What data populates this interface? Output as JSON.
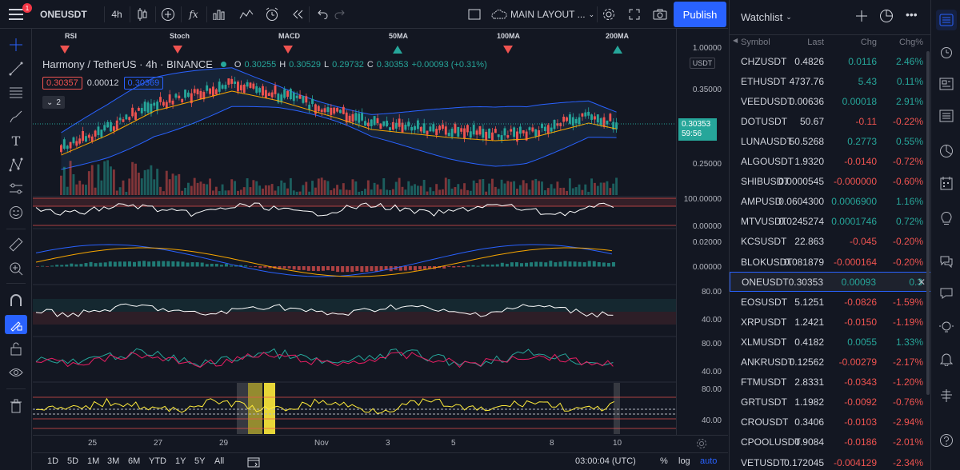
{
  "topbar": {
    "symbol": "ONEUSDT",
    "interval": "4h",
    "layout_name": "MAIN LAYOUT ...",
    "publish_label": "Publish",
    "notification_count": "1"
  },
  "legend": {
    "title": "Harmony / TetherUS · 4h · BINANCE",
    "o_label": "O",
    "o_value": "0.30255",
    "h_label": "H",
    "h_value": "0.30529",
    "l_label": "L",
    "l_value": "0.29732",
    "c_label": "C",
    "c_value": "0.30353",
    "change": "+0.00093 (+0.31%)",
    "bid": "0.30357",
    "spread": "0.00012",
    "ask": "0.30369",
    "collapse_count": "2"
  },
  "indicator_markers": [
    "RSI",
    "Stoch",
    "MACD",
    "50MA",
    "100MA",
    "200MA"
  ],
  "price_scale": {
    "top": "1.00000",
    "currency": "USDT",
    "p1": "0.35000",
    "current": "0.30353",
    "countdown": "59:56",
    "p2": "0.25000",
    "pane1_top": "100.00000",
    "pane1_bot": "0.00000",
    "pane2_top": "0.02000",
    "pane2_mid": "0.00000",
    "pane3_top": "80.00",
    "pane3_bot": "40.00",
    "pane4_top": "80.00",
    "pane4_bot": "40.00",
    "pane5_top": "80.00",
    "pane5_bot": "40.00"
  },
  "time_axis": [
    "25",
    "27",
    "29",
    "Nov",
    "3",
    "5",
    "8",
    "10"
  ],
  "bottom_bar": {
    "ranges": [
      "1D",
      "5D",
      "1M",
      "3M",
      "6M",
      "YTD",
      "1Y",
      "5Y",
      "All"
    ],
    "clock": "03:00:04 (UTC)",
    "percent": "%",
    "log": "log",
    "auto": "auto"
  },
  "watchlist": {
    "title": "Watchlist",
    "columns": {
      "symbol": "Symbol",
      "last": "Last",
      "chg": "Chg",
      "chgp": "Chg%"
    },
    "rows": [
      {
        "symbol": "CHZUSDT",
        "last": "0.4826",
        "chg": "0.0116",
        "chgp": "2.46%",
        "dir": "up"
      },
      {
        "symbol": "ETHUSDT",
        "last": "4737.76",
        "chg": "5.43",
        "chgp": "0.11%",
        "dir": "up"
      },
      {
        "symbol": "VEEDUSDT",
        "last": "0.00636",
        "chg": "0.00018",
        "chgp": "2.91%",
        "dir": "up"
      },
      {
        "symbol": "DOTUSDT",
        "last": "50.67",
        "chg": "-0.11",
        "chgp": "-0.22%",
        "dir": "dn"
      },
      {
        "symbol": "LUNAUSDT",
        "last": "50.5268",
        "chg": "0.2773",
        "chgp": "0.55%",
        "dir": "up"
      },
      {
        "symbol": "ALGOUSDT",
        "last": "1.9320",
        "chg": "-0.0140",
        "chgp": "-0.72%",
        "dir": "dn"
      },
      {
        "symbol": "SHIBUSDT",
        "last": "0.0000545",
        "chg": "-0.000000",
        "chgp": "-0.60%",
        "dir": "dn"
      },
      {
        "symbol": "AMPUSD",
        "last": "0.0604300",
        "chg": "0.0006900",
        "chgp": "1.16%",
        "dir": "up"
      },
      {
        "symbol": "MTVUSDT",
        "last": "0.0245274",
        "chg": "0.0001746",
        "chgp": "0.72%",
        "dir": "up"
      },
      {
        "symbol": "KCSUSDT",
        "last": "22.863",
        "chg": "-0.045",
        "chgp": "-0.20%",
        "dir": "dn"
      },
      {
        "symbol": "BLOKUSDT",
        "last": "0.081879",
        "chg": "-0.000164",
        "chgp": "-0.20%",
        "dir": "dn"
      },
      {
        "symbol": "ONEUSDT",
        "last": "0.30353",
        "chg": "0.00093",
        "chgp": "0.3",
        "dir": "up"
      },
      {
        "symbol": "EOSUSDT",
        "last": "5.1251",
        "chg": "-0.0826",
        "chgp": "-1.59%",
        "dir": "dn"
      },
      {
        "symbol": "XRPUSDT",
        "last": "1.2421",
        "chg": "-0.0150",
        "chgp": "-1.19%",
        "dir": "dn"
      },
      {
        "symbol": "XLMUSDT",
        "last": "0.4182",
        "chg": "0.0055",
        "chgp": "1.33%",
        "dir": "up"
      },
      {
        "symbol": "ANKRUSDT",
        "last": "0.12562",
        "chg": "-0.00279",
        "chgp": "-2.17%",
        "dir": "dn"
      },
      {
        "symbol": "FTMUSDT",
        "last": "2.8331",
        "chg": "-0.0343",
        "chgp": "-1.20%",
        "dir": "dn"
      },
      {
        "symbol": "GRTUSDT",
        "last": "1.1982",
        "chg": "-0.0092",
        "chgp": "-0.76%",
        "dir": "dn"
      },
      {
        "symbol": "CROUSDT",
        "last": "0.3406",
        "chg": "-0.0103",
        "chgp": "-2.94%",
        "dir": "dn"
      },
      {
        "symbol": "CPOOLUSDT",
        "last": "0.9084",
        "chg": "-0.0186",
        "chgp": "-2.01%",
        "dir": "dn"
      },
      {
        "symbol": "VETUSDT",
        "last": "0.172045",
        "chg": "-0.004129",
        "chgp": "-2.34%",
        "dir": "dn"
      }
    ]
  },
  "colors": {
    "up": "#26a69a",
    "down": "#ef5350",
    "accent": "#2962ff",
    "background": "#131722"
  }
}
